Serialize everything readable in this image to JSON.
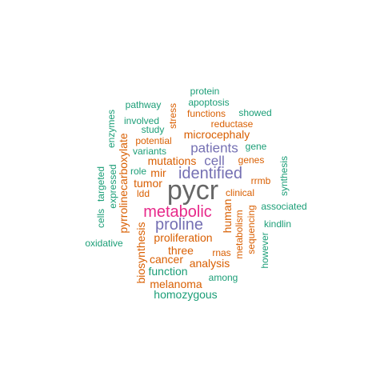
{
  "colors": {
    "green": "#1b9e77",
    "orange": "#d95f02",
    "purple": "#7570b3",
    "magenta": "#e7298a",
    "gray": "#666666"
  },
  "words": {
    "pycr": "pycr",
    "metabolic": "metabolic",
    "proline": "proline",
    "identified": "identified",
    "patients": "patients",
    "cell": "cell",
    "mutations": "mutations",
    "microcephaly": "microcephaly",
    "protein": "protein",
    "apoptosis": "apoptosis",
    "pathway": "pathway",
    "functions": "functions",
    "showed": "showed",
    "involved": "involved",
    "reductase": "reductase",
    "study": "study",
    "stress": "stress",
    "enzymes": "enzymes",
    "potential": "potential",
    "gene": "gene",
    "variants": "variants",
    "genes": "genes",
    "role": "role",
    "mir": "mir",
    "rrmb": "rrmb",
    "tumor": "tumor",
    "clinical": "clinical",
    "ldd": "ldd",
    "human": "human",
    "synthesis": "synthesis",
    "associated": "associated",
    "targeted": "targeted",
    "expressed": "expressed",
    "pyrrolinecarboxylate": "pyrrolinecarboxylate",
    "cells": "cells",
    "kindlin": "kindlin",
    "metabolism": "metabolism",
    "sequencing": "sequencing",
    "proliferation": "proliferation",
    "oxidative": "oxidative",
    "however": "however",
    "three": "three",
    "rnas": "rnas",
    "cancer": "cancer",
    "analysis": "analysis",
    "biosynthesis": "biosynthesis",
    "function": "function",
    "among": "among",
    "melanoma": "melanoma",
    "homozygous": "homozygous"
  }
}
